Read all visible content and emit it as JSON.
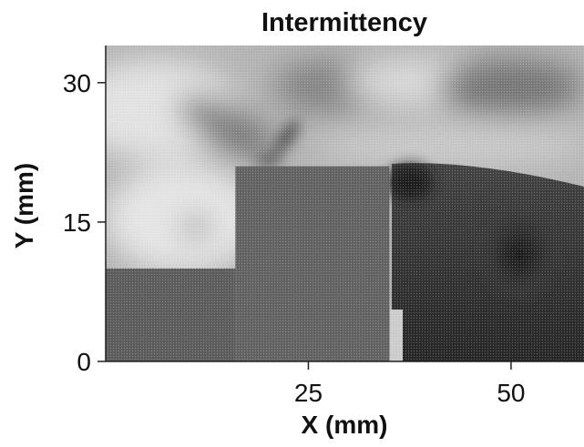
{
  "chart_data": {
    "type": "heatmap",
    "title": "Intermittency",
    "xlabel": "X (mm)",
    "ylabel": "Y (mm)",
    "xlim": [
      0,
      59
    ],
    "ylim": [
      0,
      34
    ],
    "x_ticks": [
      {
        "value": 25,
        "label": "25"
      },
      {
        "value": 50,
        "label": "50"
      }
    ],
    "y_ticks": [
      {
        "value": 0,
        "label": "0"
      },
      {
        "value": 15,
        "label": "15"
      },
      {
        "value": 30,
        "label": "30"
      }
    ],
    "grid": false,
    "legend": "none",
    "colormap": [
      "#ffffff",
      "#1a1a1a"
    ],
    "obstacles": [
      {
        "x0": 0,
        "x1": 16,
        "y0": 0,
        "y1": 10,
        "gray": "#606060"
      },
      {
        "x0": 16,
        "x1": 35,
        "y0": 0,
        "y1": 21,
        "gray": "#666666"
      }
    ]
  }
}
